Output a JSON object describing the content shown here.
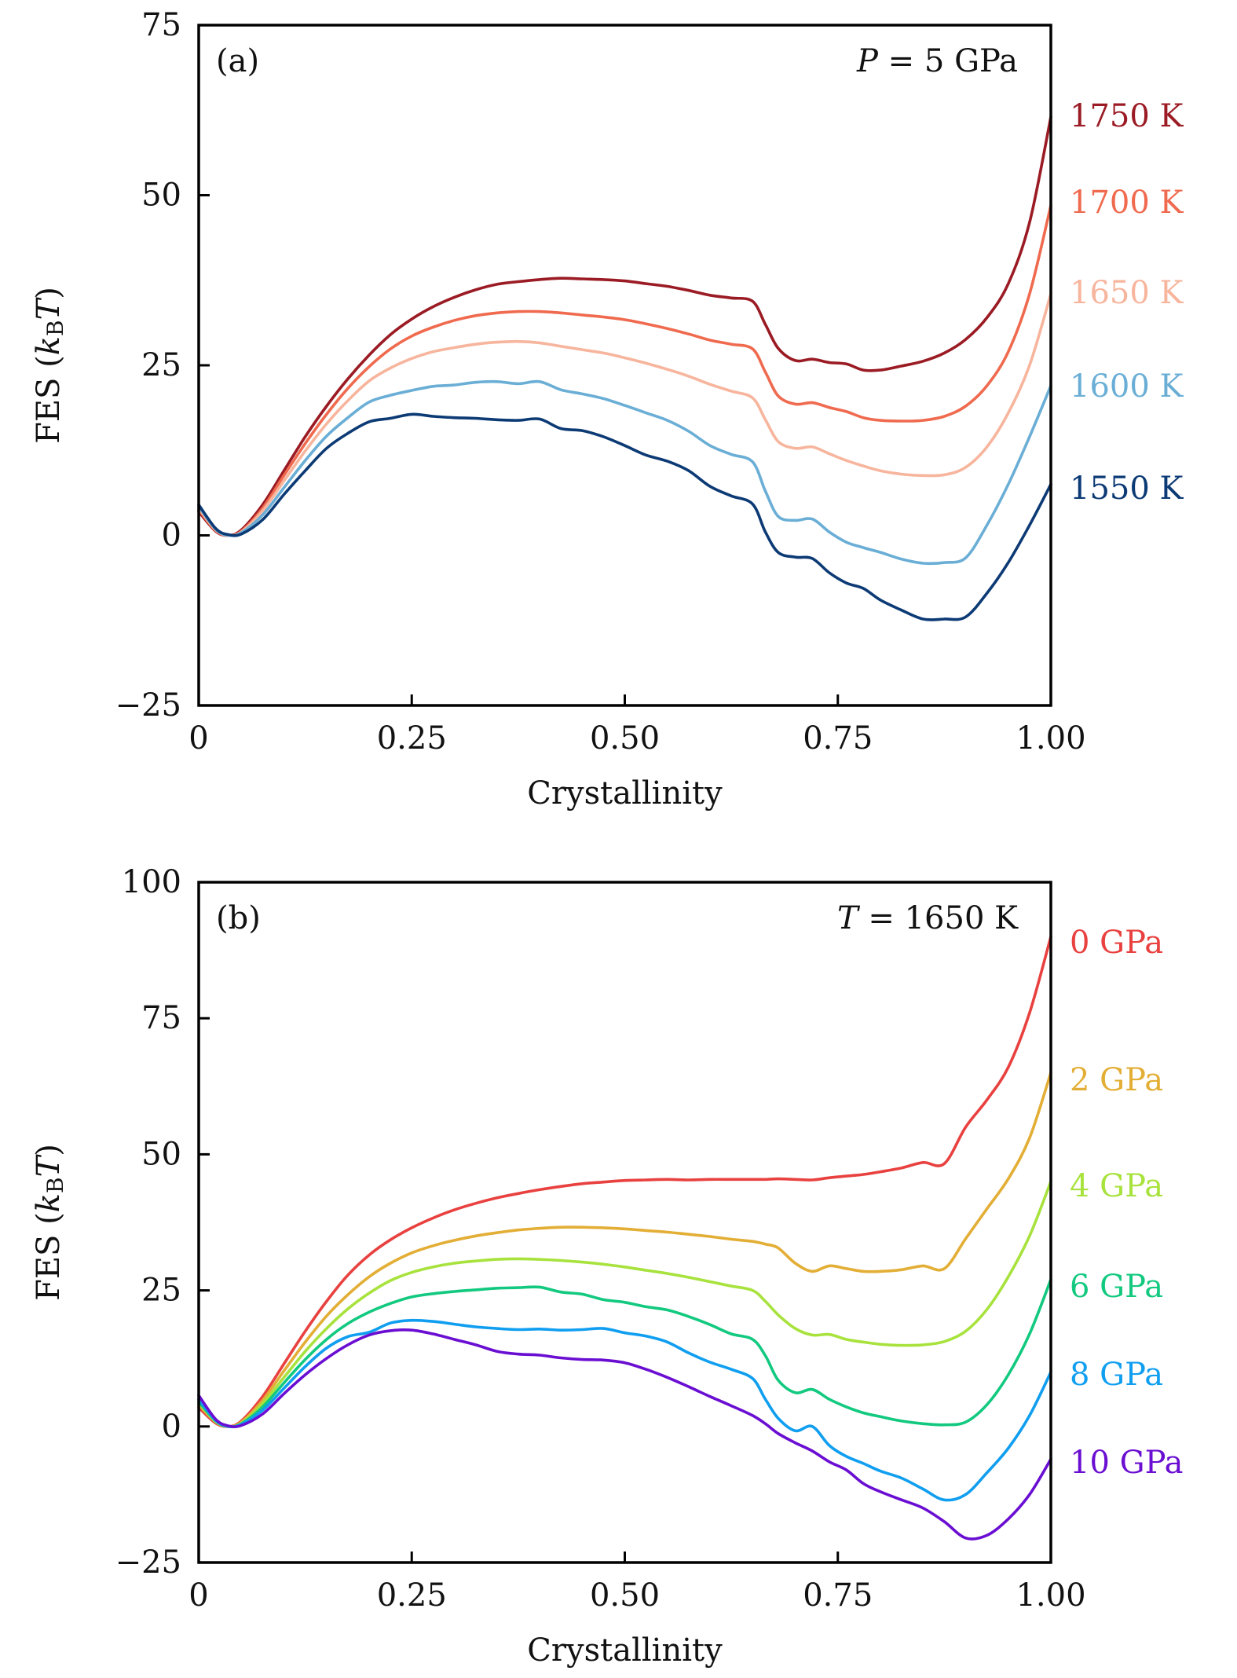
{
  "chart_data": [
    {
      "type": "line",
      "panel_tag": "(a)",
      "annotation": "P = 5 GPa",
      "annotation_parts": {
        "var": "P",
        "rest": " = 5 GPa"
      },
      "xlabel": "Crystallinity",
      "ylabel": "FES (kBT)",
      "ylabel_parts": {
        "pre": "FES (",
        "k": "k",
        "sub": "B",
        "T": "T",
        "post": ")"
      },
      "xlim": [
        0,
        1.0
      ],
      "ylim": [
        -25,
        75
      ],
      "xticks": [
        0,
        0.25,
        0.5,
        0.75,
        1.0
      ],
      "xtick_labels": [
        "0",
        "0.25",
        "0.50",
        "0.75",
        "1.00"
      ],
      "yticks": [
        -25,
        0,
        25,
        50,
        75
      ],
      "ytick_labels": [
        "−25",
        "0",
        "25",
        "50",
        "75"
      ],
      "grid": false,
      "legend_placement": "right-outside-inline",
      "x": [
        0,
        0.02,
        0.035,
        0.05,
        0.075,
        0.1,
        0.125,
        0.15,
        0.175,
        0.2,
        0.225,
        0.25,
        0.275,
        0.3,
        0.325,
        0.35,
        0.375,
        0.4,
        0.425,
        0.45,
        0.475,
        0.5,
        0.525,
        0.55,
        0.575,
        0.6,
        0.625,
        0.65,
        0.665,
        0.68,
        0.7,
        0.72,
        0.74,
        0.76,
        0.78,
        0.8,
        0.825,
        0.85,
        0.875,
        0.9,
        0.925,
        0.95,
        0.975,
        1.0
      ],
      "series": [
        {
          "name": "1750 K",
          "color": "#9b1b24",
          "values": [
            3.5,
            0.6,
            0.0,
            0.8,
            4.5,
            9.5,
            14.5,
            19.0,
            23.0,
            26.5,
            29.5,
            31.8,
            33.6,
            35.0,
            36.1,
            36.9,
            37.3,
            37.6,
            37.8,
            37.7,
            37.6,
            37.4,
            37.0,
            36.6,
            36.0,
            35.3,
            34.9,
            34.4,
            31.0,
            27.5,
            25.7,
            25.9,
            25.4,
            25.2,
            24.3,
            24.3,
            24.9,
            25.6,
            26.8,
            28.8,
            32.0,
            37.0,
            46.0,
            61.5
          ]
        },
        {
          "name": "1700 K",
          "color": "#ef6a4e",
          "values": [
            3.8,
            0.7,
            0.0,
            0.6,
            4.0,
            8.8,
            13.5,
            17.8,
            21.6,
            24.8,
            27.4,
            29.3,
            30.6,
            31.6,
            32.3,
            32.7,
            32.9,
            32.9,
            32.7,
            32.4,
            32.1,
            31.7,
            31.1,
            30.4,
            29.6,
            28.7,
            28.1,
            27.4,
            24.0,
            20.5,
            19.3,
            19.5,
            18.8,
            18.2,
            17.3,
            16.9,
            16.8,
            16.9,
            17.5,
            19.0,
            22.0,
            27.0,
            35.5,
            48.5
          ]
        },
        {
          "name": "1650 K",
          "color": "#f7b59d",
          "values": [
            4.0,
            0.8,
            0.0,
            0.5,
            3.6,
            8.0,
            12.4,
            16.4,
            19.8,
            22.7,
            24.6,
            26.0,
            27.0,
            27.6,
            28.1,
            28.4,
            28.5,
            28.3,
            27.8,
            27.3,
            26.8,
            26.1,
            25.3,
            24.4,
            23.4,
            22.2,
            21.2,
            20.2,
            17.0,
            13.8,
            12.8,
            13.0,
            12.0,
            11.0,
            10.2,
            9.5,
            9.0,
            8.8,
            8.9,
            10.0,
            13.0,
            18.0,
            25.0,
            35.5
          ]
        },
        {
          "name": "1600 K",
          "color": "#6aaed6",
          "values": [
            4.3,
            0.9,
            0.0,
            0.4,
            3.0,
            7.0,
            11.0,
            14.6,
            17.3,
            19.6,
            20.6,
            21.3,
            21.9,
            22.1,
            22.5,
            22.6,
            22.3,
            22.6,
            21.4,
            20.8,
            20.1,
            19.1,
            18.0,
            16.9,
            15.3,
            13.2,
            11.9,
            10.8,
            6.5,
            2.8,
            2.2,
            2.4,
            0.5,
            -1.0,
            -1.8,
            -2.5,
            -3.5,
            -4.1,
            -4.0,
            -3.3,
            1.5,
            7.5,
            14.5,
            22.0
          ]
        },
        {
          "name": "1550 K",
          "color": "#0c3a75",
          "values": [
            4.5,
            1.0,
            0.1,
            0.2,
            2.3,
            6.0,
            9.5,
            12.8,
            15.0,
            16.7,
            17.2,
            17.8,
            17.5,
            17.3,
            17.2,
            17.0,
            16.9,
            17.1,
            15.7,
            15.4,
            14.5,
            13.2,
            11.8,
            10.9,
            9.5,
            7.2,
            5.8,
            4.6,
            0.5,
            -2.5,
            -3.2,
            -3.4,
            -5.5,
            -7.0,
            -7.8,
            -9.5,
            -11.0,
            -12.3,
            -12.3,
            -12.0,
            -8.5,
            -4.0,
            1.5,
            7.5
          ]
        }
      ]
    },
    {
      "type": "line",
      "panel_tag": "(b)",
      "annotation": "T = 1650 K",
      "annotation_parts": {
        "var": "T",
        "rest": " = 1650 K"
      },
      "xlabel": "Crystallinity",
      "ylabel": "FES (kBT)",
      "ylabel_parts": {
        "pre": "FES (",
        "k": "k",
        "sub": "B",
        "T": "T",
        "post": ")"
      },
      "xlim": [
        0,
        1.0
      ],
      "ylim": [
        -25,
        100
      ],
      "xticks": [
        0,
        0.25,
        0.5,
        0.75,
        1.0
      ],
      "xtick_labels": [
        "0",
        "0.25",
        "0.50",
        "0.75",
        "1.00"
      ],
      "yticks": [
        -25,
        0,
        25,
        50,
        75,
        100
      ],
      "ytick_labels": [
        "−25",
        "0",
        "25",
        "50",
        "75",
        "100"
      ],
      "grid": false,
      "legend_placement": "right-outside-inline",
      "x": [
        0,
        0.02,
        0.035,
        0.05,
        0.075,
        0.1,
        0.125,
        0.15,
        0.175,
        0.2,
        0.225,
        0.25,
        0.275,
        0.3,
        0.325,
        0.35,
        0.375,
        0.4,
        0.425,
        0.45,
        0.475,
        0.5,
        0.525,
        0.55,
        0.575,
        0.6,
        0.625,
        0.65,
        0.665,
        0.68,
        0.7,
        0.72,
        0.74,
        0.76,
        0.78,
        0.8,
        0.825,
        0.85,
        0.875,
        0.9,
        0.925,
        0.95,
        0.975,
        1.0
      ],
      "series": [
        {
          "name": "0 GPa",
          "color": "#e8413f",
          "values": [
            3.5,
            0.6,
            0.0,
            1.0,
            5.5,
            11.5,
            17.5,
            23.0,
            27.8,
            31.5,
            34.3,
            36.5,
            38.3,
            39.8,
            41.0,
            42.0,
            42.8,
            43.5,
            44.1,
            44.6,
            44.9,
            45.2,
            45.3,
            45.4,
            45.3,
            45.4,
            45.4,
            45.4,
            45.4,
            45.5,
            45.4,
            45.3,
            45.7,
            46.0,
            46.3,
            46.8,
            47.5,
            48.5,
            48.3,
            55.0,
            60.0,
            66.0,
            76.0,
            90.0
          ]
        },
        {
          "name": "2 GPa",
          "color": "#e3ae35",
          "values": [
            4.0,
            0.8,
            0.0,
            0.8,
            4.8,
            10.2,
            15.5,
            20.3,
            24.2,
            27.5,
            30.0,
            31.9,
            33.2,
            34.2,
            35.0,
            35.6,
            36.1,
            36.4,
            36.6,
            36.6,
            36.5,
            36.3,
            36.0,
            35.7,
            35.3,
            34.9,
            34.4,
            34.0,
            33.5,
            32.8,
            30.0,
            28.5,
            29.5,
            29.0,
            28.5,
            28.5,
            28.8,
            29.5,
            29.0,
            34.5,
            40.0,
            45.5,
            53.0,
            65.0
          ]
        },
        {
          "name": "4 GPa",
          "color": "#a8e23d",
          "values": [
            4.3,
            0.9,
            0.0,
            0.6,
            4.2,
            9.0,
            13.8,
            18.0,
            21.6,
            24.5,
            26.8,
            28.3,
            29.3,
            30.0,
            30.4,
            30.7,
            30.8,
            30.7,
            30.5,
            30.2,
            29.8,
            29.3,
            28.7,
            28.1,
            27.4,
            26.6,
            25.8,
            25.0,
            23.0,
            20.5,
            18.0,
            16.8,
            16.9,
            16.0,
            15.5,
            15.1,
            14.9,
            15.0,
            15.6,
            17.5,
            21.5,
            27.5,
            35.0,
            45.0
          ]
        },
        {
          "name": "6 GPa",
          "color": "#12c97f",
          "values": [
            4.6,
            1.0,
            0.0,
            0.5,
            3.6,
            8.0,
            12.3,
            16.0,
            18.9,
            21.0,
            22.6,
            23.8,
            24.4,
            24.8,
            25.1,
            25.4,
            25.5,
            25.6,
            24.7,
            24.3,
            23.3,
            22.8,
            22.0,
            21.4,
            20.2,
            18.7,
            17.0,
            16.0,
            13.0,
            8.5,
            6.2,
            6.8,
            5.0,
            3.6,
            2.5,
            1.8,
            1.0,
            0.5,
            0.3,
            0.8,
            4.0,
            9.5,
            17.0,
            27.0
          ]
        },
        {
          "name": "8 GPa",
          "color": "#109ef0",
          "values": [
            5.0,
            1.1,
            0.0,
            0.4,
            3.0,
            7.0,
            11.0,
            14.4,
            16.5,
            17.3,
            19.0,
            19.5,
            19.3,
            18.8,
            18.3,
            18.0,
            17.8,
            17.9,
            17.7,
            17.8,
            18.0,
            17.2,
            16.6,
            15.5,
            13.5,
            11.8,
            10.5,
            8.8,
            5.0,
            1.5,
            -0.8,
            0.0,
            -3.5,
            -5.5,
            -6.8,
            -8.2,
            -9.5,
            -11.5,
            -13.5,
            -12.5,
            -8.5,
            -4.0,
            2.0,
            10.0
          ]
        },
        {
          "name": "10 GPa",
          "color": "#6a0ed2",
          "values": [
            5.7,
            1.3,
            0.1,
            0.2,
            2.3,
            6.0,
            9.5,
            12.5,
            15.0,
            16.8,
            17.6,
            17.7,
            17.0,
            16.0,
            15.0,
            13.8,
            13.3,
            13.1,
            12.6,
            12.3,
            12.2,
            11.7,
            10.5,
            9.0,
            7.3,
            5.5,
            3.8,
            2.0,
            0.5,
            -1.3,
            -3.0,
            -4.5,
            -6.5,
            -8.0,
            -10.5,
            -12.0,
            -13.5,
            -15.0,
            -17.5,
            -20.5,
            -20.0,
            -17.0,
            -12.5,
            -6.0
          ]
        }
      ]
    }
  ]
}
